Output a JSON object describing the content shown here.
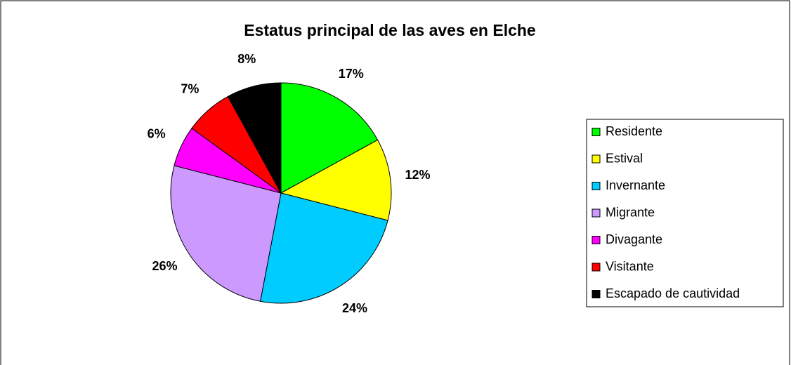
{
  "chart_data": {
    "type": "pie",
    "title": "Estatus principal de las aves en Elche",
    "categories": [
      "Residente",
      "Estival",
      "Invernante",
      "Migrante",
      "Divagante",
      "Visitante",
      "Escapado de cautividad"
    ],
    "values": [
      17,
      12,
      24,
      26,
      6,
      7,
      8
    ],
    "value_labels": [
      "17%",
      "12%",
      "24%",
      "26%",
      "6%",
      "7%",
      "8%"
    ],
    "colors": [
      "#00ff00",
      "#ffff00",
      "#00ccff",
      "#cc99ff",
      "#ff00ff",
      "#ff0000",
      "#000000"
    ],
    "legend": "right"
  }
}
